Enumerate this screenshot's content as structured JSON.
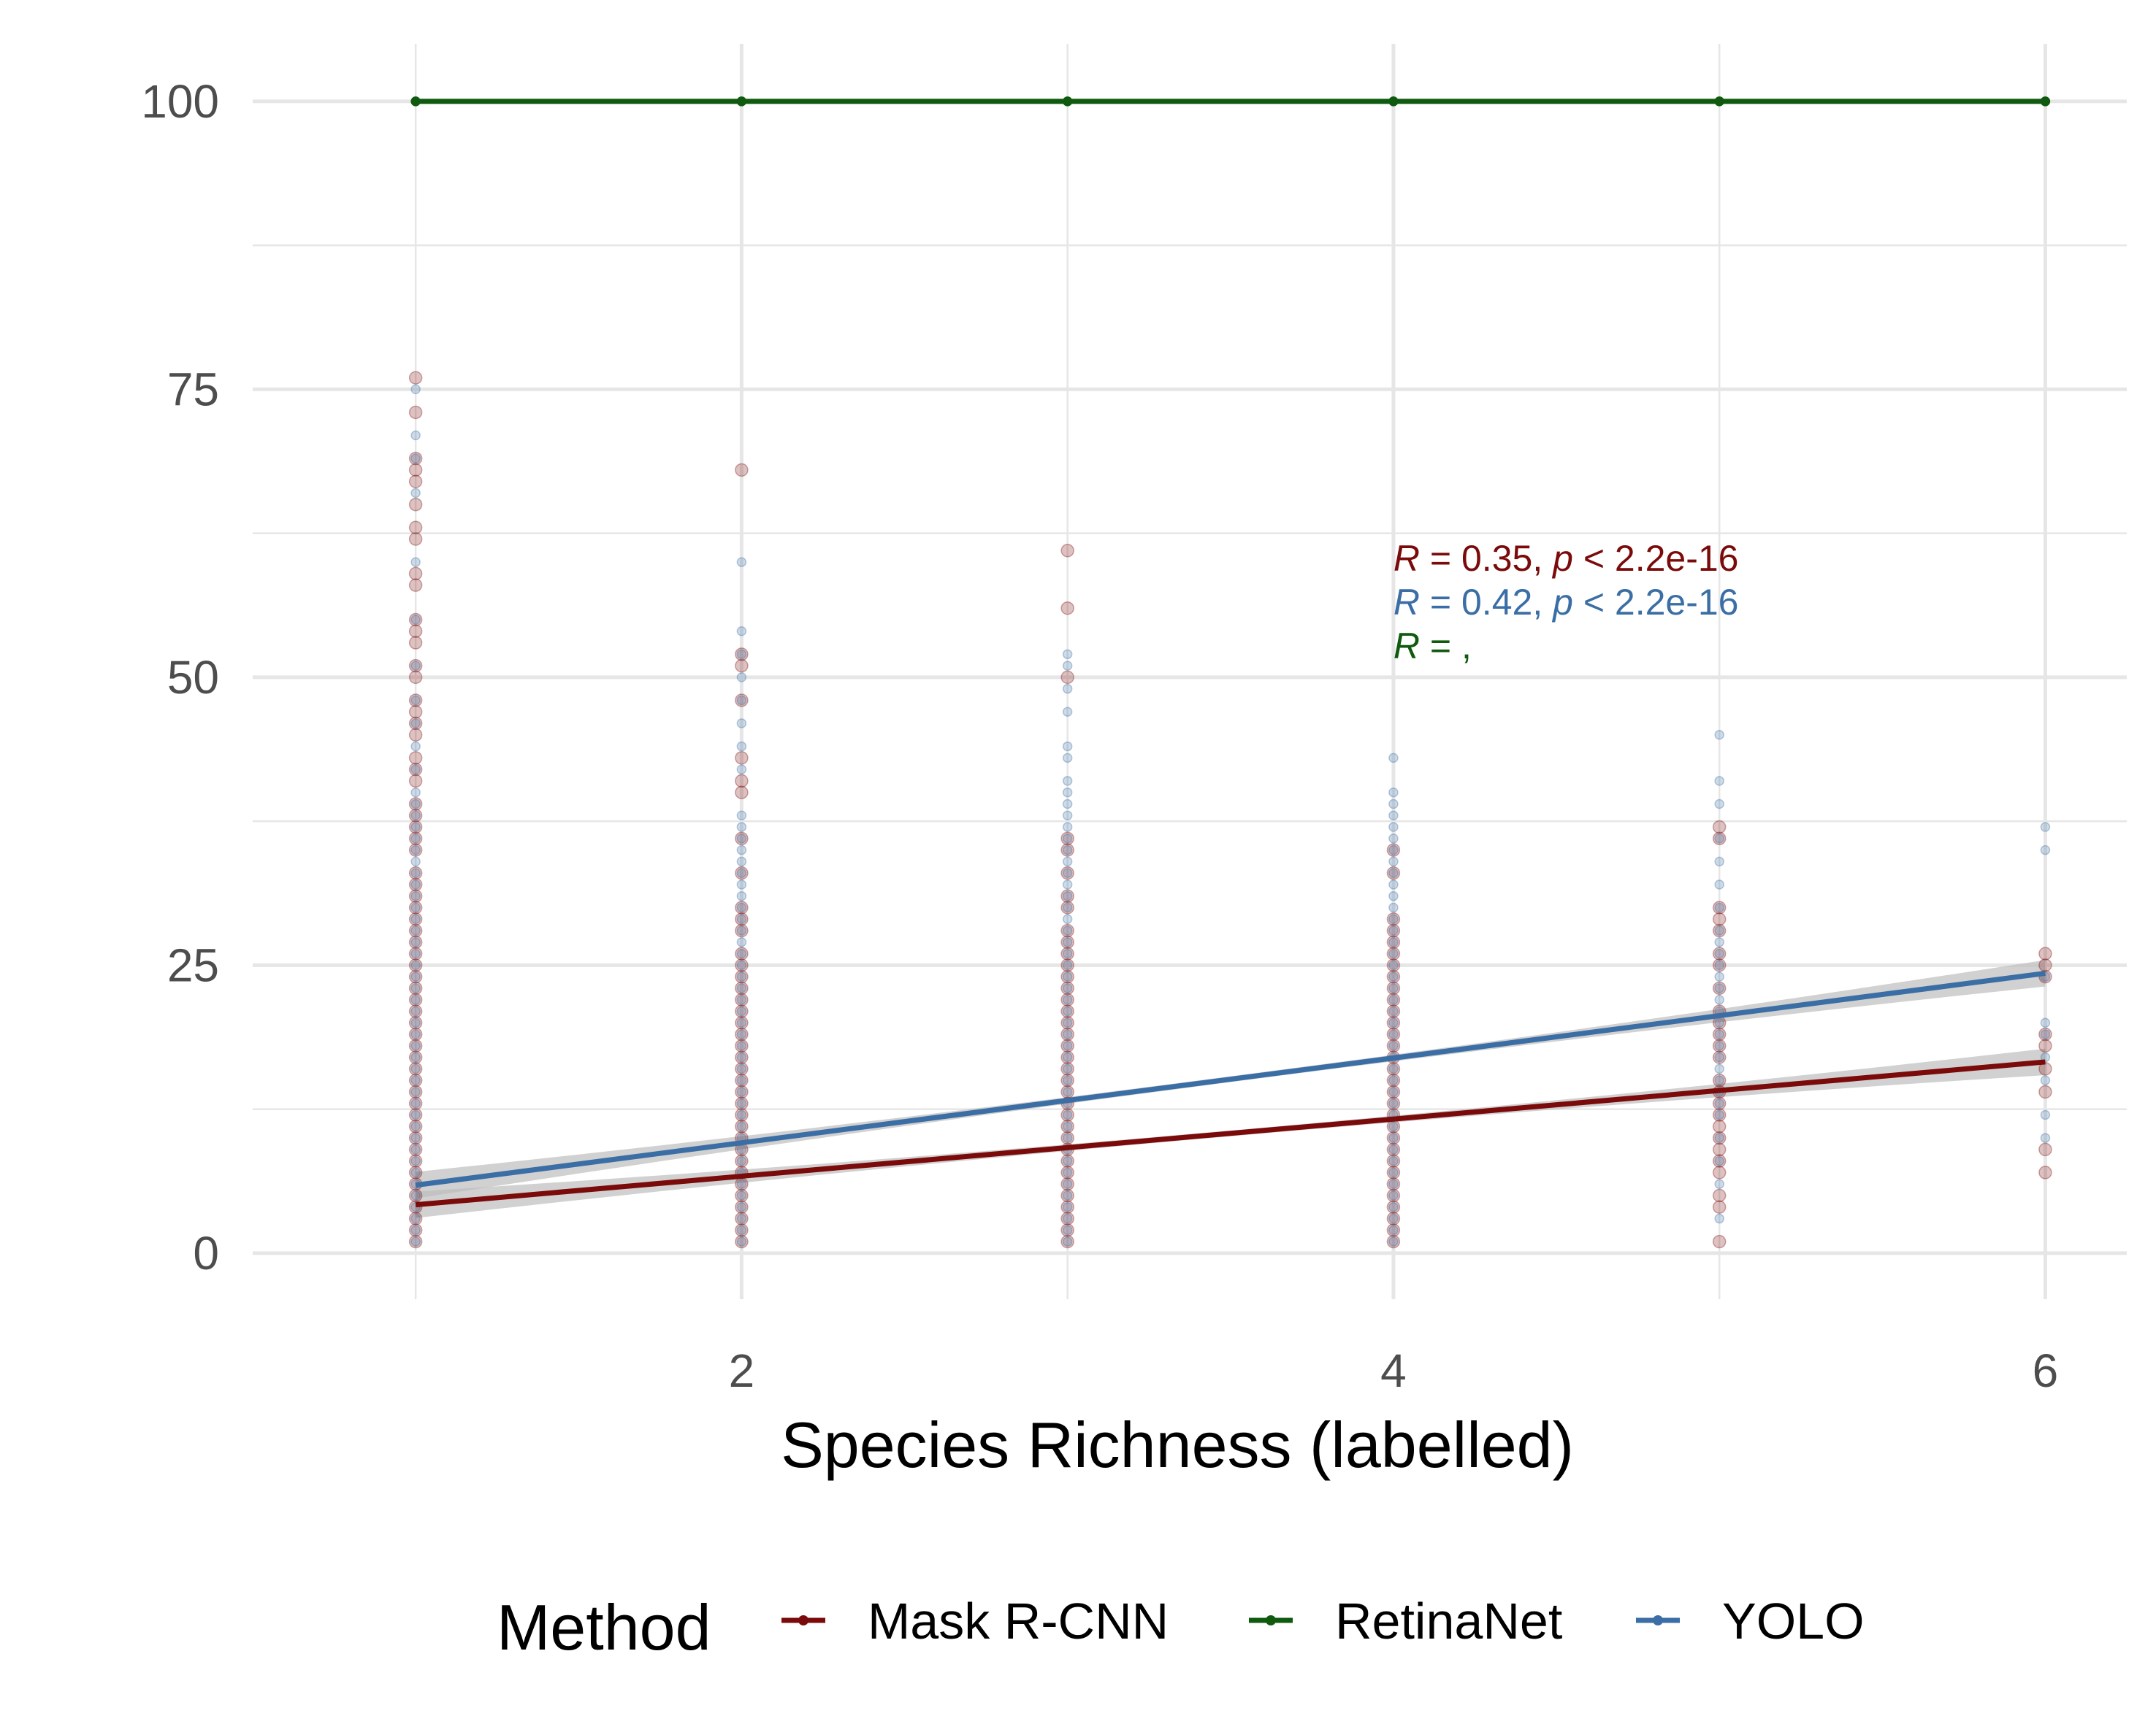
{
  "chart_data": {
    "type": "scatter",
    "xlabel": "Species Richness (labelled)",
    "ylabel": "",
    "xlim": [
      0.5,
      6.25
    ],
    "ylim": [
      -4,
      105
    ],
    "x_ticks": [
      2,
      4,
      6
    ],
    "y_ticks": [
      0,
      25,
      50,
      75,
      100
    ],
    "grid": true,
    "legend": {
      "title": "Method",
      "position": "bottom",
      "entries": [
        "Mask R-CNN",
        "RetinaNet",
        "YOLO"
      ]
    },
    "colors": {
      "Mask R-CNN": "#7b0a0a",
      "RetinaNet": "#0f5a0f",
      "YOLO": "#3a6ea5",
      "ribbon": "#bdbdbd",
      "grid": "#e6e6e6"
    },
    "annotations": [
      {
        "series": "Mask R-CNN",
        "r_symbol": "R",
        "r_text": " = 0.35, ",
        "p_symbol": "p",
        "p_text": " < 2.2e-16"
      },
      {
        "series": "YOLO",
        "r_symbol": "R",
        "r_text": " = 0.42, ",
        "p_symbol": "p",
        "p_text": " < 2.2e-16"
      },
      {
        "series": "RetinaNet",
        "r_symbol": "R",
        "r_text": " = ,",
        "p_symbol": "",
        "p_text": ""
      }
    ],
    "series": [
      {
        "name": "Mask R-CNN",
        "fit": {
          "x": [
            1,
            6
          ],
          "y": [
            4.2,
            16.6
          ]
        },
        "points": [
          {
            "x": 1,
            "y": [
              1,
              2,
              3,
              4,
              5,
              6,
              7,
              8,
              9,
              10,
              11,
              12,
              13,
              14,
              15,
              16,
              17,
              18,
              19,
              20,
              21,
              22,
              23,
              24,
              25,
              26,
              27,
              28,
              29,
              30,
              31,
              32,
              33,
              35,
              36,
              37,
              38,
              39,
              41,
              42,
              43,
              45,
              46,
              47,
              48,
              50,
              51,
              53,
              54,
              55,
              58,
              59,
              62,
              63,
              65,
              67,
              68,
              69,
              73,
              76
            ]
          },
          {
            "x": 2,
            "y": [
              1,
              2,
              3,
              4,
              5,
              6,
              7,
              8,
              9,
              10,
              11,
              12,
              13,
              14,
              15,
              16,
              17,
              18,
              19,
              20,
              21,
              22,
              23,
              24,
              25,
              26,
              28,
              29,
              30,
              33,
              36,
              40,
              41,
              43,
              48,
              51,
              52,
              68
            ]
          },
          {
            "x": 3,
            "y": [
              1,
              2,
              3,
              4,
              5,
              6,
              7,
              8,
              9,
              10,
              11,
              12,
              13,
              14,
              15,
              16,
              17,
              18,
              19,
              20,
              21,
              22,
              23,
              24,
              25,
              26,
              27,
              28,
              30,
              31,
              33,
              35,
              36,
              50,
              56,
              61
            ]
          },
          {
            "x": 4,
            "y": [
              1,
              2,
              3,
              4,
              5,
              6,
              7,
              8,
              9,
              10,
              11,
              12,
              13,
              14,
              15,
              16,
              17,
              18,
              19,
              20,
              21,
              22,
              23,
              24,
              25,
              26,
              27,
              28,
              29,
              33,
              35
            ]
          },
          {
            "x": 5,
            "y": [
              1,
              4,
              5,
              7,
              8,
              9,
              10,
              11,
              12,
              13,
              14,
              15,
              17,
              18,
              19,
              20,
              21,
              23,
              25,
              26,
              28,
              29,
              30,
              36,
              37
            ]
          },
          {
            "x": 6,
            "y": [
              7,
              9,
              14,
              16,
              18,
              19,
              24,
              25,
              26
            ]
          }
        ]
      },
      {
        "name": "RetinaNet",
        "fit": {
          "x": [
            1,
            6
          ],
          "y": [
            100,
            100
          ]
        },
        "points": [
          {
            "x": 1,
            "y": [
              100
            ]
          },
          {
            "x": 2,
            "y": [
              100
            ]
          },
          {
            "x": 3,
            "y": [
              100
            ]
          },
          {
            "x": 4,
            "y": [
              100
            ]
          },
          {
            "x": 5,
            "y": [
              100
            ]
          },
          {
            "x": 6,
            "y": [
              100
            ]
          }
        ]
      },
      {
        "name": "YOLO",
        "fit": {
          "x": [
            1,
            6
          ],
          "y": [
            5.9,
            24.3
          ]
        },
        "points": [
          {
            "x": 1,
            "y": [
              1,
              2,
              3,
              4,
              5,
              6,
              7,
              8,
              9,
              10,
              11,
              12,
              13,
              14,
              15,
              16,
              17,
              18,
              19,
              20,
              21,
              22,
              23,
              24,
              25,
              26,
              27,
              28,
              29,
              30,
              31,
              32,
              33,
              34,
              35,
              36,
              37,
              38,
              39,
              40,
              42,
              44,
              46,
              48,
              51,
              55,
              60,
              66,
              69,
              71,
              75
            ]
          },
          {
            "x": 2,
            "y": [
              1,
              2,
              3,
              4,
              5,
              6,
              7,
              8,
              9,
              10,
              11,
              12,
              13,
              14,
              15,
              16,
              17,
              18,
              19,
              20,
              21,
              22,
              23,
              24,
              25,
              26,
              27,
              28,
              29,
              30,
              31,
              32,
              33,
              34,
              35,
              36,
              37,
              38,
              42,
              44,
              46,
              48,
              50,
              52,
              54,
              60
            ]
          },
          {
            "x": 3,
            "y": [
              1,
              2,
              3,
              4,
              5,
              6,
              7,
              8,
              9,
              10,
              11,
              12,
              13,
              14,
              15,
              16,
              17,
              18,
              19,
              20,
              21,
              22,
              23,
              24,
              25,
              26,
              27,
              28,
              29,
              30,
              31,
              32,
              33,
              34,
              35,
              36,
              37,
              38,
              39,
              40,
              41,
              43,
              44,
              47,
              49,
              51,
              52
            ]
          },
          {
            "x": 4,
            "y": [
              1,
              2,
              3,
              4,
              5,
              6,
              7,
              8,
              9,
              10,
              11,
              12,
              13,
              14,
              15,
              16,
              17,
              18,
              19,
              20,
              21,
              22,
              23,
              24,
              25,
              26,
              27,
              28,
              29,
              30,
              31,
              32,
              33,
              34,
              35,
              36,
              37,
              38,
              39,
              40,
              43
            ]
          },
          {
            "x": 5,
            "y": [
              3,
              6,
              8,
              10,
              12,
              13,
              14,
              15,
              16,
              17,
              18,
              19,
              20,
              21,
              22,
              23,
              24,
              25,
              26,
              27,
              28,
              30,
              32,
              34,
              36,
              39,
              41,
              45
            ]
          },
          {
            "x": 6,
            "y": [
              10,
              12,
              15,
              17,
              19,
              20,
              24,
              35,
              37
            ]
          }
        ]
      }
    ]
  }
}
